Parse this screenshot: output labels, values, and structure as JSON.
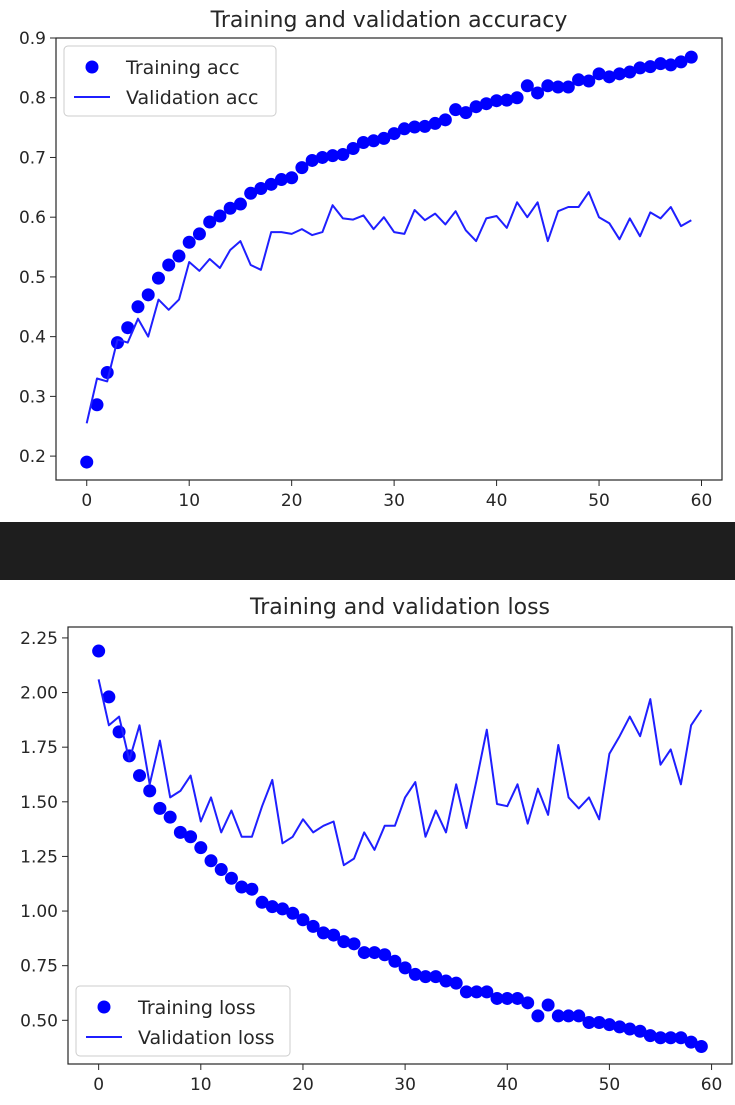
{
  "charts": [
    {
      "key": "acc",
      "chart_data": {
        "type": "line",
        "title": "Training and validation accuracy",
        "xlabel": "",
        "ylabel": "",
        "xlim": [
          -3,
          62
        ],
        "ylim": [
          0.16,
          0.9
        ],
        "xticks": [
          0,
          10,
          20,
          30,
          40,
          50,
          60
        ],
        "yticks": [
          0.2,
          0.3,
          0.4,
          0.5,
          0.6,
          0.7,
          0.8,
          0.9
        ],
        "ytick_labels": [
          "0.2",
          "0.3",
          "0.4",
          "0.5",
          "0.6",
          "0.7",
          "0.8",
          "0.9"
        ],
        "grid": false,
        "legend_position": "top-left",
        "series": [
          {
            "name": "Training acc",
            "style": "markers",
            "color": "#0000ff",
            "x": [
              0,
              1,
              2,
              3,
              4,
              5,
              6,
              7,
              8,
              9,
              10,
              11,
              12,
              13,
              14,
              15,
              16,
              17,
              18,
              19,
              20,
              21,
              22,
              23,
              24,
              25,
              26,
              27,
              28,
              29,
              30,
              31,
              32,
              33,
              34,
              35,
              36,
              37,
              38,
              39,
              40,
              41,
              42,
              43,
              44,
              45,
              46,
              47,
              48,
              49,
              50,
              51,
              52,
              53,
              54,
              55,
              56,
              57,
              58,
              59
            ],
            "values": [
              0.19,
              0.286,
              0.34,
              0.39,
              0.415,
              0.45,
              0.47,
              0.498,
              0.52,
              0.535,
              0.558,
              0.572,
              0.592,
              0.602,
              0.615,
              0.622,
              0.64,
              0.648,
              0.655,
              0.663,
              0.666,
              0.683,
              0.695,
              0.7,
              0.703,
              0.705,
              0.715,
              0.725,
              0.728,
              0.732,
              0.74,
              0.748,
              0.751,
              0.752,
              0.757,
              0.763,
              0.78,
              0.775,
              0.785,
              0.79,
              0.795,
              0.796,
              0.8,
              0.82,
              0.808,
              0.82,
              0.818,
              0.818,
              0.83,
              0.828,
              0.84,
              0.835,
              0.84,
              0.843,
              0.85,
              0.852,
              0.857,
              0.855,
              0.86,
              0.868
            ]
          },
          {
            "name": "Validation acc",
            "style": "line",
            "color": "#1f1fff",
            "x": [
              0,
              1,
              2,
              3,
              4,
              5,
              6,
              7,
              8,
              9,
              10,
              11,
              12,
              13,
              14,
              15,
              16,
              17,
              18,
              19,
              20,
              21,
              22,
              23,
              24,
              25,
              26,
              27,
              28,
              29,
              30,
              31,
              32,
              33,
              34,
              35,
              36,
              37,
              38,
              39,
              40,
              41,
              42,
              43,
              44,
              45,
              46,
              47,
              48,
              49,
              50,
              51,
              52,
              53,
              54,
              55,
              56,
              57,
              58,
              59
            ],
            "values": [
              0.255,
              0.33,
              0.325,
              0.395,
              0.39,
              0.43,
              0.4,
              0.462,
              0.445,
              0.462,
              0.525,
              0.51,
              0.53,
              0.515,
              0.545,
              0.56,
              0.52,
              0.512,
              0.575,
              0.575,
              0.572,
              0.58,
              0.57,
              0.575,
              0.62,
              0.598,
              0.596,
              0.603,
              0.58,
              0.6,
              0.575,
              0.572,
              0.612,
              0.595,
              0.606,
              0.588,
              0.61,
              0.578,
              0.56,
              0.598,
              0.602,
              0.582,
              0.625,
              0.6,
              0.625,
              0.56,
              0.61,
              0.617,
              0.617,
              0.642,
              0.6,
              0.59,
              0.563,
              0.598,
              0.568,
              0.608,
              0.598,
              0.617,
              0.585,
              0.595
            ]
          }
        ]
      }
    },
    {
      "key": "loss",
      "chart_data": {
        "type": "line",
        "title": "Training and validation loss",
        "xlabel": "",
        "ylabel": "",
        "xlim": [
          -3,
          62
        ],
        "ylim": [
          0.3,
          2.3
        ],
        "xticks": [
          0,
          10,
          20,
          30,
          40,
          50,
          60
        ],
        "yticks": [
          0.5,
          0.75,
          1.0,
          1.25,
          1.5,
          1.75,
          2.0,
          2.25
        ],
        "ytick_labels": [
          "0.50",
          "0.75",
          "1.00",
          "1.25",
          "1.50",
          "1.75",
          "2.00",
          "2.25"
        ],
        "grid": false,
        "legend_position": "bottom-left",
        "series": [
          {
            "name": "Training loss",
            "style": "markers",
            "color": "#0000ff",
            "x": [
              0,
              1,
              2,
              3,
              4,
              5,
              6,
              7,
              8,
              9,
              10,
              11,
              12,
              13,
              14,
              15,
              16,
              17,
              18,
              19,
              20,
              21,
              22,
              23,
              24,
              25,
              26,
              27,
              28,
              29,
              30,
              31,
              32,
              33,
              34,
              35,
              36,
              37,
              38,
              39,
              40,
              41,
              42,
              43,
              44,
              45,
              46,
              47,
              48,
              49,
              50,
              51,
              52,
              53,
              54,
              55,
              56,
              57,
              58,
              59
            ],
            "values": [
              2.19,
              1.98,
              1.82,
              1.71,
              1.62,
              1.55,
              1.47,
              1.43,
              1.36,
              1.34,
              1.29,
              1.23,
              1.19,
              1.15,
              1.11,
              1.1,
              1.04,
              1.02,
              1.01,
              0.99,
              0.96,
              0.93,
              0.9,
              0.89,
              0.86,
              0.85,
              0.81,
              0.81,
              0.8,
              0.77,
              0.74,
              0.71,
              0.7,
              0.7,
              0.68,
              0.67,
              0.63,
              0.63,
              0.63,
              0.6,
              0.6,
              0.6,
              0.58,
              0.52,
              0.57,
              0.52,
              0.52,
              0.52,
              0.49,
              0.49,
              0.48,
              0.47,
              0.46,
              0.45,
              0.43,
              0.42,
              0.42,
              0.42,
              0.4,
              0.38
            ]
          },
          {
            "name": "Validation loss",
            "style": "line",
            "color": "#1f1fff",
            "x": [
              0,
              1,
              2,
              3,
              4,
              5,
              6,
              7,
              8,
              9,
              10,
              11,
              12,
              13,
              14,
              15,
              16,
              17,
              18,
              19,
              20,
              21,
              22,
              23,
              24,
              25,
              26,
              27,
              28,
              29,
              30,
              31,
              32,
              33,
              34,
              35,
              36,
              37,
              38,
              39,
              40,
              41,
              42,
              43,
              44,
              45,
              46,
              47,
              48,
              49,
              50,
              51,
              52,
              53,
              54,
              55,
              56,
              57,
              58,
              59
            ],
            "values": [
              2.06,
              1.85,
              1.89,
              1.69,
              1.85,
              1.58,
              1.78,
              1.52,
              1.55,
              1.62,
              1.41,
              1.52,
              1.36,
              1.46,
              1.34,
              1.34,
              1.48,
              1.6,
              1.31,
              1.34,
              1.42,
              1.36,
              1.39,
              1.41,
              1.21,
              1.24,
              1.36,
              1.28,
              1.39,
              1.39,
              1.52,
              1.59,
              1.34,
              1.46,
              1.36,
              1.58,
              1.38,
              1.6,
              1.83,
              1.49,
              1.48,
              1.58,
              1.4,
              1.56,
              1.44,
              1.76,
              1.52,
              1.47,
              1.52,
              1.42,
              1.72,
              1.8,
              1.89,
              1.8,
              1.97,
              1.67,
              1.74,
              1.58,
              1.85,
              1.92
            ]
          }
        ]
      }
    }
  ]
}
